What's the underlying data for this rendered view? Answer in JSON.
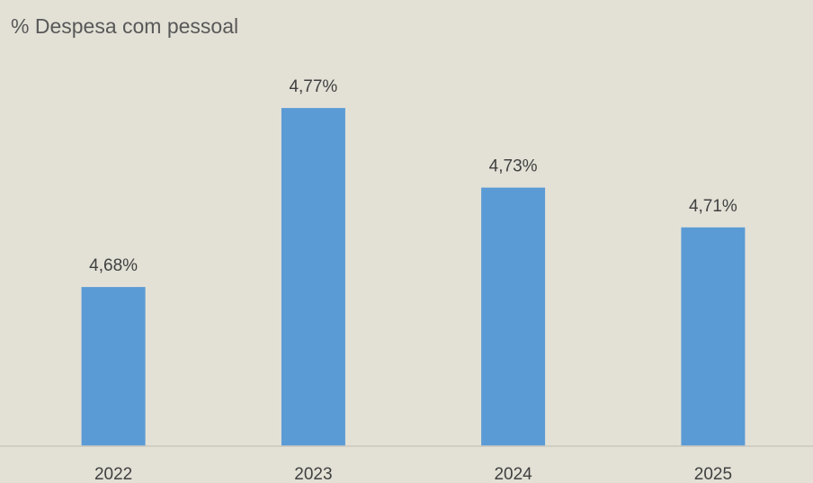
{
  "chart_data": {
    "type": "bar",
    "title": "% Despesa com pessoal",
    "categories": [
      "2022",
      "2023",
      "2024",
      "2025"
    ],
    "values": [
      4.68,
      4.77,
      4.73,
      4.71
    ],
    "data_labels": [
      "4,68%",
      "4,77%",
      "4,73%",
      "4,71%"
    ],
    "xlabel": "",
    "ylabel": "",
    "ylim": [
      4.6,
      4.78
    ],
    "grid": false,
    "colors": {
      "bar": "#5b9bd5",
      "background": "#e3e1d6"
    }
  }
}
